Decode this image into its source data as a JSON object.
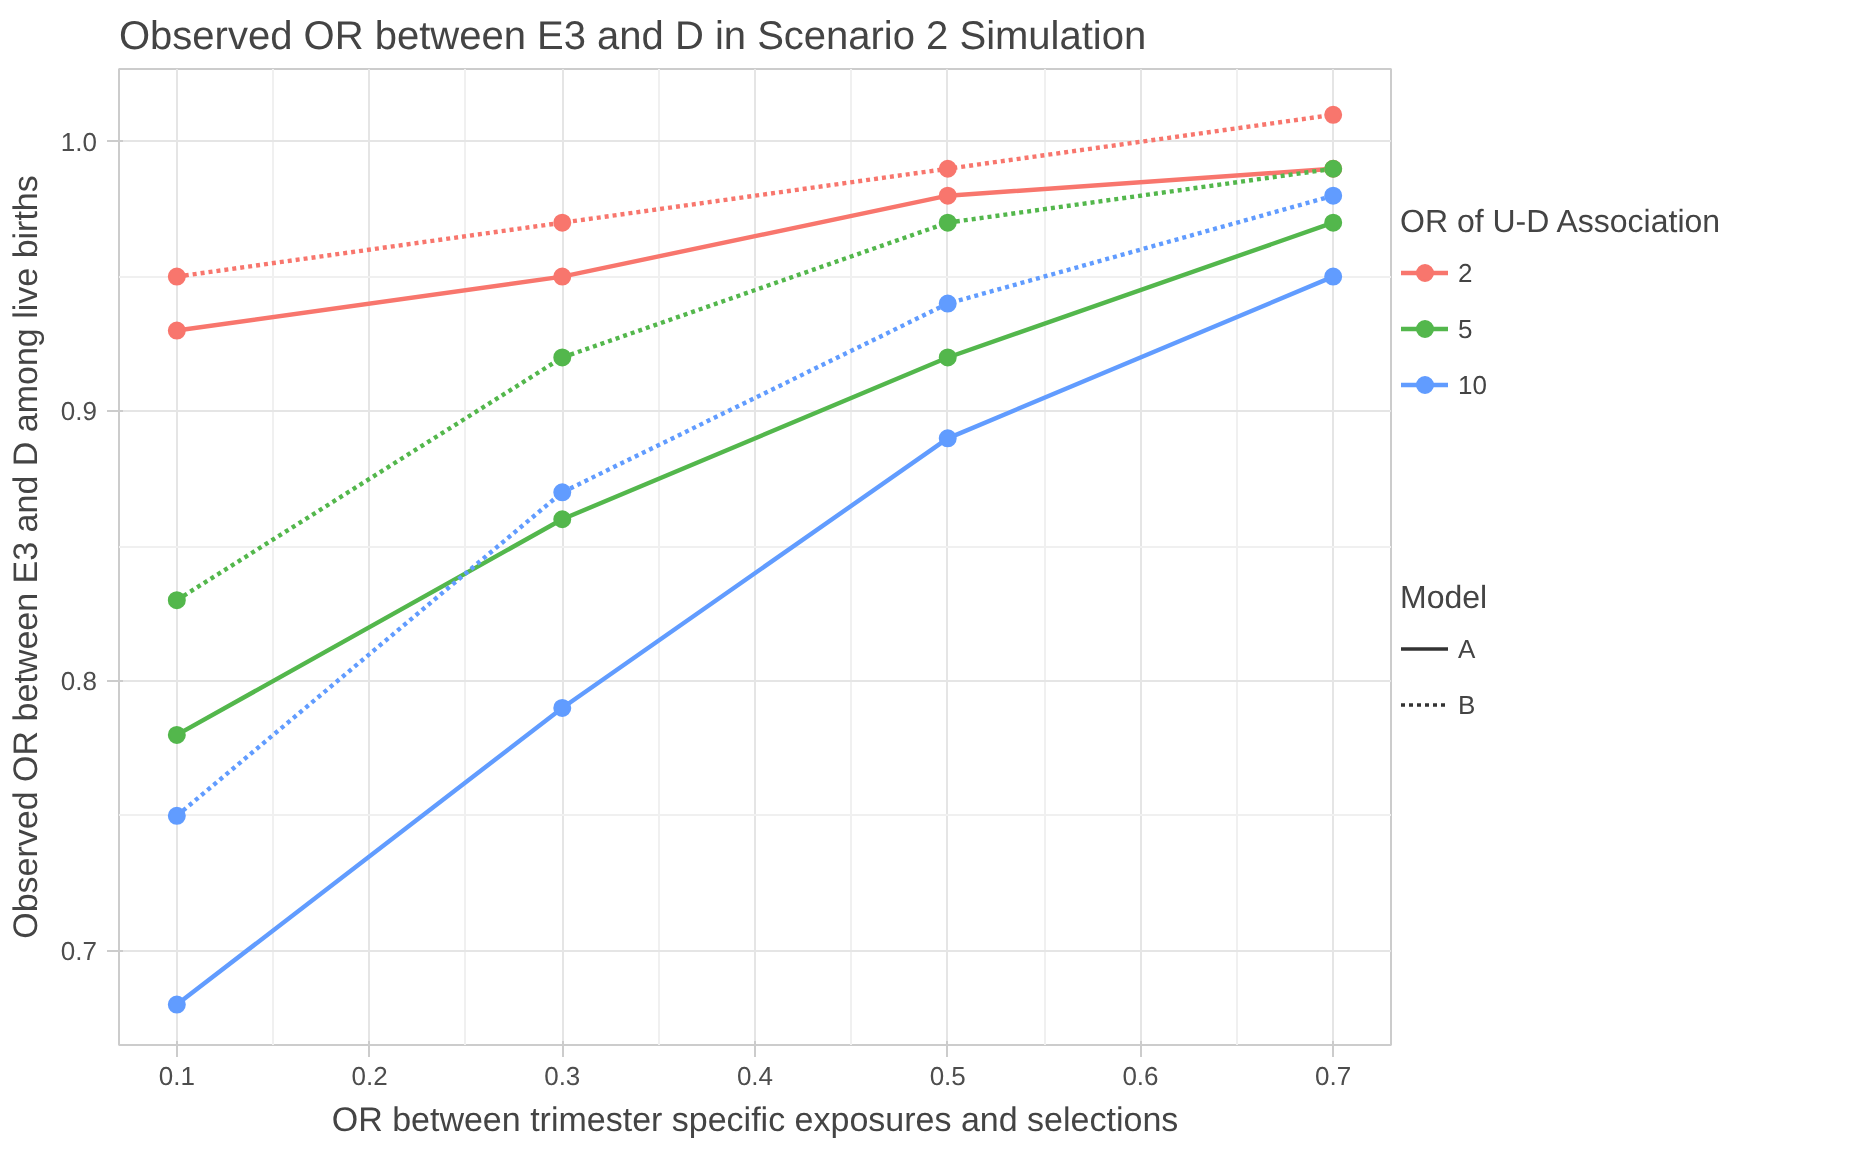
{
  "chart_data": {
    "type": "line",
    "title": "Observed OR between E3 and D in Scenario 2 Simulation",
    "xlabel": "OR between trimester specific exposures and selections",
    "ylabel": "Observed OR between E3 and D among live births",
    "x": [
      0.1,
      0.3,
      0.5,
      0.7
    ],
    "xlim": [
      0.07,
      0.73
    ],
    "xticks": [
      0.1,
      0.2,
      0.3,
      0.4,
      0.5,
      0.6,
      0.7
    ],
    "ylim": [
      0.665,
      1.027
    ],
    "yticks": [
      0.7,
      0.8,
      0.9,
      {
        "value": 1.0,
        "label": "1.0"
      }
    ],
    "grid": true,
    "marker": "circle",
    "legend": "right",
    "legend_title": "OR of U-D Association",
    "annotations": [
      "Model",
      "A",
      "B"
    ],
    "series": [
      {
        "name": "2",
        "color": "#f8766d",
        "line_style": "solid",
        "values": [
          0.93,
          0.95,
          0.98,
          0.99
        ]
      },
      {
        "color": "#f8766d",
        "line_style": "dotted",
        "values": [
          0.95,
          0.97,
          0.99,
          1.01
        ]
      },
      {
        "name": "5",
        "color": "#53b74c",
        "line_style": "solid",
        "values": [
          0.78,
          0.86,
          0.92,
          0.97
        ]
      },
      {
        "color": "#53b74c",
        "line_style": "dotted",
        "values": [
          0.83,
          0.92,
          0.97,
          0.99
        ]
      },
      {
        "name": "10",
        "color": "#619cff",
        "line_style": "solid",
        "values": [
          0.68,
          0.79,
          0.89,
          0.95
        ]
      },
      {
        "color": "#619cff",
        "line_style": "dotted",
        "values": [
          0.75,
          0.87,
          0.94,
          0.98
        ]
      }
    ]
  }
}
